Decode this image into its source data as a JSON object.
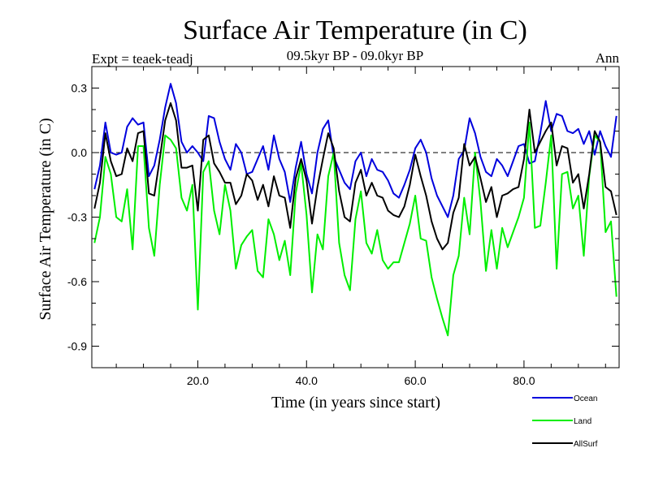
{
  "chart_data": {
    "type": "line",
    "title": "Surface Air Temperature (in C)",
    "subtitle": "09.5kyr BP - 09.0kyr BP",
    "left_label": "Expt = teaek-teadj",
    "right_label": "Ann",
    "xlabel": "Time (in years since start)",
    "ylabel": "Surface Air Temperature (in C)",
    "xlim": [
      0.5,
      97.5
    ],
    "ylim": [
      -1.0,
      0.4
    ],
    "x_ticks": [
      20,
      40,
      60,
      80
    ],
    "x_tick_labels": [
      "20.0",
      "40.0",
      "60.0",
      "80.0"
    ],
    "y_ticks": [
      0.3,
      0.0,
      -0.3,
      -0.6,
      -0.9
    ],
    "y_tick_labels": [
      "0.3",
      "0.0",
      "-0.3",
      "-0.6",
      "-0.9"
    ],
    "zero_line": "dashed",
    "x": [
      1,
      2,
      3,
      4,
      5,
      6,
      7,
      8,
      9,
      10,
      11,
      12,
      13,
      14,
      15,
      16,
      17,
      18,
      19,
      20,
      21,
      22,
      23,
      24,
      25,
      26,
      27,
      28,
      29,
      30,
      31,
      32,
      33,
      34,
      35,
      36,
      37,
      38,
      39,
      40,
      41,
      42,
      43,
      44,
      45,
      46,
      47,
      48,
      49,
      50,
      51,
      52,
      53,
      54,
      55,
      56,
      57,
      58,
      59,
      60,
      61,
      62,
      63,
      64,
      65,
      66,
      67,
      68,
      69,
      70,
      71,
      72,
      73,
      74,
      75,
      76,
      77,
      78,
      79,
      80,
      81,
      82,
      83,
      84,
      85,
      86,
      87,
      88,
      89,
      90,
      91,
      92,
      93,
      94,
      95,
      96,
      97
    ],
    "series": [
      {
        "name": "Ocean",
        "color": "#0000dd",
        "values": [
          -0.17,
          -0.06,
          0.14,
          0.0,
          -0.01,
          0.0,
          0.12,
          0.16,
          0.13,
          0.14,
          -0.11,
          -0.06,
          0.06,
          0.21,
          0.32,
          0.23,
          0.05,
          0.0,
          0.03,
          0.0,
          -0.04,
          0.17,
          0.16,
          0.05,
          -0.03,
          -0.08,
          0.04,
          0.0,
          -0.1,
          -0.09,
          -0.03,
          0.03,
          -0.08,
          0.08,
          -0.03,
          -0.09,
          -0.23,
          -0.07,
          0.05,
          -0.1,
          -0.19,
          0.0,
          0.11,
          0.15,
          -0.02,
          -0.08,
          -0.14,
          -0.17,
          -0.04,
          0.0,
          -0.11,
          -0.03,
          -0.08,
          -0.09,
          -0.13,
          -0.19,
          -0.21,
          -0.15,
          -0.08,
          0.02,
          0.06,
          0.0,
          -0.12,
          -0.2,
          -0.25,
          -0.3,
          -0.2,
          -0.03,
          0.01,
          0.16,
          0.09,
          -0.02,
          -0.09,
          -0.11,
          -0.03,
          -0.06,
          -0.11,
          -0.04,
          0.03,
          0.04,
          -0.05,
          -0.04,
          0.09,
          0.24,
          0.1,
          0.18,
          0.17,
          0.1,
          0.09,
          0.11,
          0.04,
          0.1,
          -0.01,
          0.1,
          0.03,
          -0.02,
          0.17
        ]
      },
      {
        "name": "Land",
        "color": "#00ee00",
        "values": [
          -0.42,
          -0.3,
          -0.02,
          -0.1,
          -0.3,
          -0.32,
          -0.17,
          -0.45,
          0.03,
          0.03,
          -0.35,
          -0.48,
          -0.15,
          0.08,
          0.06,
          0.02,
          -0.21,
          -0.27,
          -0.15,
          -0.73,
          -0.09,
          -0.04,
          -0.27,
          -0.38,
          -0.15,
          -0.27,
          -0.54,
          -0.43,
          -0.39,
          -0.36,
          -0.55,
          -0.58,
          -0.31,
          -0.38,
          -0.5,
          -0.41,
          -0.57,
          -0.19,
          -0.05,
          -0.29,
          -0.65,
          -0.38,
          -0.45,
          -0.11,
          0.0,
          -0.42,
          -0.57,
          -0.64,
          -0.31,
          -0.18,
          -0.42,
          -0.47,
          -0.36,
          -0.5,
          -0.54,
          -0.51,
          -0.51,
          -0.42,
          -0.33,
          -0.2,
          -0.4,
          -0.41,
          -0.58,
          -0.68,
          -0.77,
          -0.85,
          -0.57,
          -0.48,
          -0.21,
          -0.38,
          0.0,
          -0.23,
          -0.55,
          -0.36,
          -0.54,
          -0.35,
          -0.44,
          -0.37,
          -0.3,
          -0.21,
          0.14,
          -0.35,
          -0.34,
          -0.14,
          0.08,
          -0.54,
          -0.1,
          -0.09,
          -0.26,
          -0.2,
          -0.48,
          -0.11,
          0.08,
          0.05,
          -0.37,
          -0.32,
          -0.67
        ]
      },
      {
        "name": "AllSurf",
        "color": "#000000",
        "values": [
          -0.26,
          -0.14,
          0.09,
          -0.04,
          -0.11,
          -0.1,
          0.02,
          -0.04,
          0.09,
          0.1,
          -0.19,
          -0.2,
          -0.03,
          0.15,
          0.23,
          0.15,
          -0.07,
          -0.07,
          -0.06,
          -0.27,
          0.06,
          0.08,
          -0.05,
          -0.09,
          -0.14,
          -0.14,
          -0.24,
          -0.2,
          -0.1,
          -0.13,
          -0.22,
          -0.15,
          -0.25,
          -0.11,
          -0.2,
          -0.21,
          -0.35,
          -0.12,
          -0.03,
          -0.13,
          -0.33,
          -0.16,
          -0.03,
          0.09,
          0.02,
          -0.18,
          -0.3,
          -0.32,
          -0.14,
          -0.08,
          -0.2,
          -0.14,
          -0.2,
          -0.21,
          -0.27,
          -0.29,
          -0.3,
          -0.25,
          -0.15,
          -0.01,
          -0.11,
          -0.2,
          -0.32,
          -0.4,
          -0.45,
          -0.42,
          -0.28,
          -0.21,
          0.04,
          -0.06,
          -0.02,
          -0.12,
          -0.23,
          -0.16,
          -0.3,
          -0.2,
          -0.19,
          -0.17,
          -0.16,
          -0.03,
          0.2,
          0.0,
          0.05,
          0.1,
          0.14,
          -0.06,
          0.03,
          0.02,
          -0.14,
          -0.1,
          -0.26,
          -0.1,
          0.1,
          0.05,
          -0.16,
          -0.18,
          -0.29
        ]
      }
    ],
    "legend": [
      "Ocean",
      "Land",
      "AllSurf"
    ],
    "legend_position": "bottom-right"
  }
}
